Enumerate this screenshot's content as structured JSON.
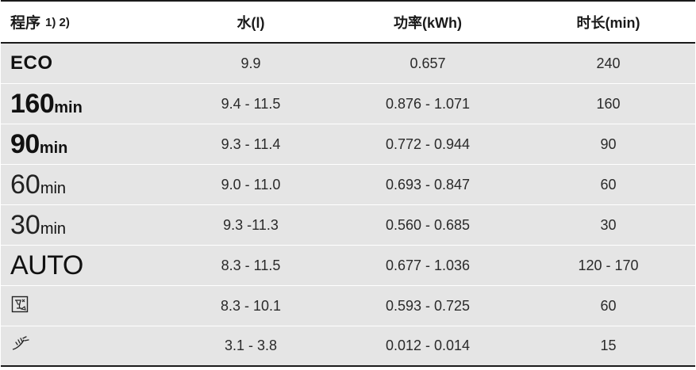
{
  "header": {
    "program": "程序",
    "program_notes": "1) 2)",
    "water": "水(l)",
    "power": "功率(kWh)",
    "duration": "时长(min)"
  },
  "rows": [
    {
      "program": "ECO",
      "water": "9.9",
      "power": "0.657",
      "duration": "240"
    },
    {
      "program_num": "160",
      "program_unit": "min",
      "water": "9.4 - 11.5",
      "power": "0.876 - 1.071",
      "duration": "160"
    },
    {
      "program_num": "90",
      "program_unit": "min",
      "water": "9.3 - 11.4",
      "power": "0.772 - 0.944",
      "duration": "90"
    },
    {
      "program_num": "60",
      "program_unit": "min",
      "water": "9.0 - 11.0",
      "power": "0.693 - 0.847",
      "duration": "60"
    },
    {
      "program_num": "30",
      "program_unit": "min",
      "water": "9.3 -11.3",
      "power": "0.560 - 0.685",
      "duration": "30"
    },
    {
      "program": "AUTO",
      "water": "8.3 - 11.5",
      "power": "0.677 - 1.036",
      "duration": "120 - 170"
    },
    {
      "program_icon": "glass-program-icon",
      "water": "8.3 - 10.1",
      "power": "0.593 - 0.725",
      "duration": "60"
    },
    {
      "program_icon": "rinse-program-icon",
      "water": "3.1 - 3.8",
      "power": "0.012 - 0.014",
      "duration": "15"
    }
  ]
}
